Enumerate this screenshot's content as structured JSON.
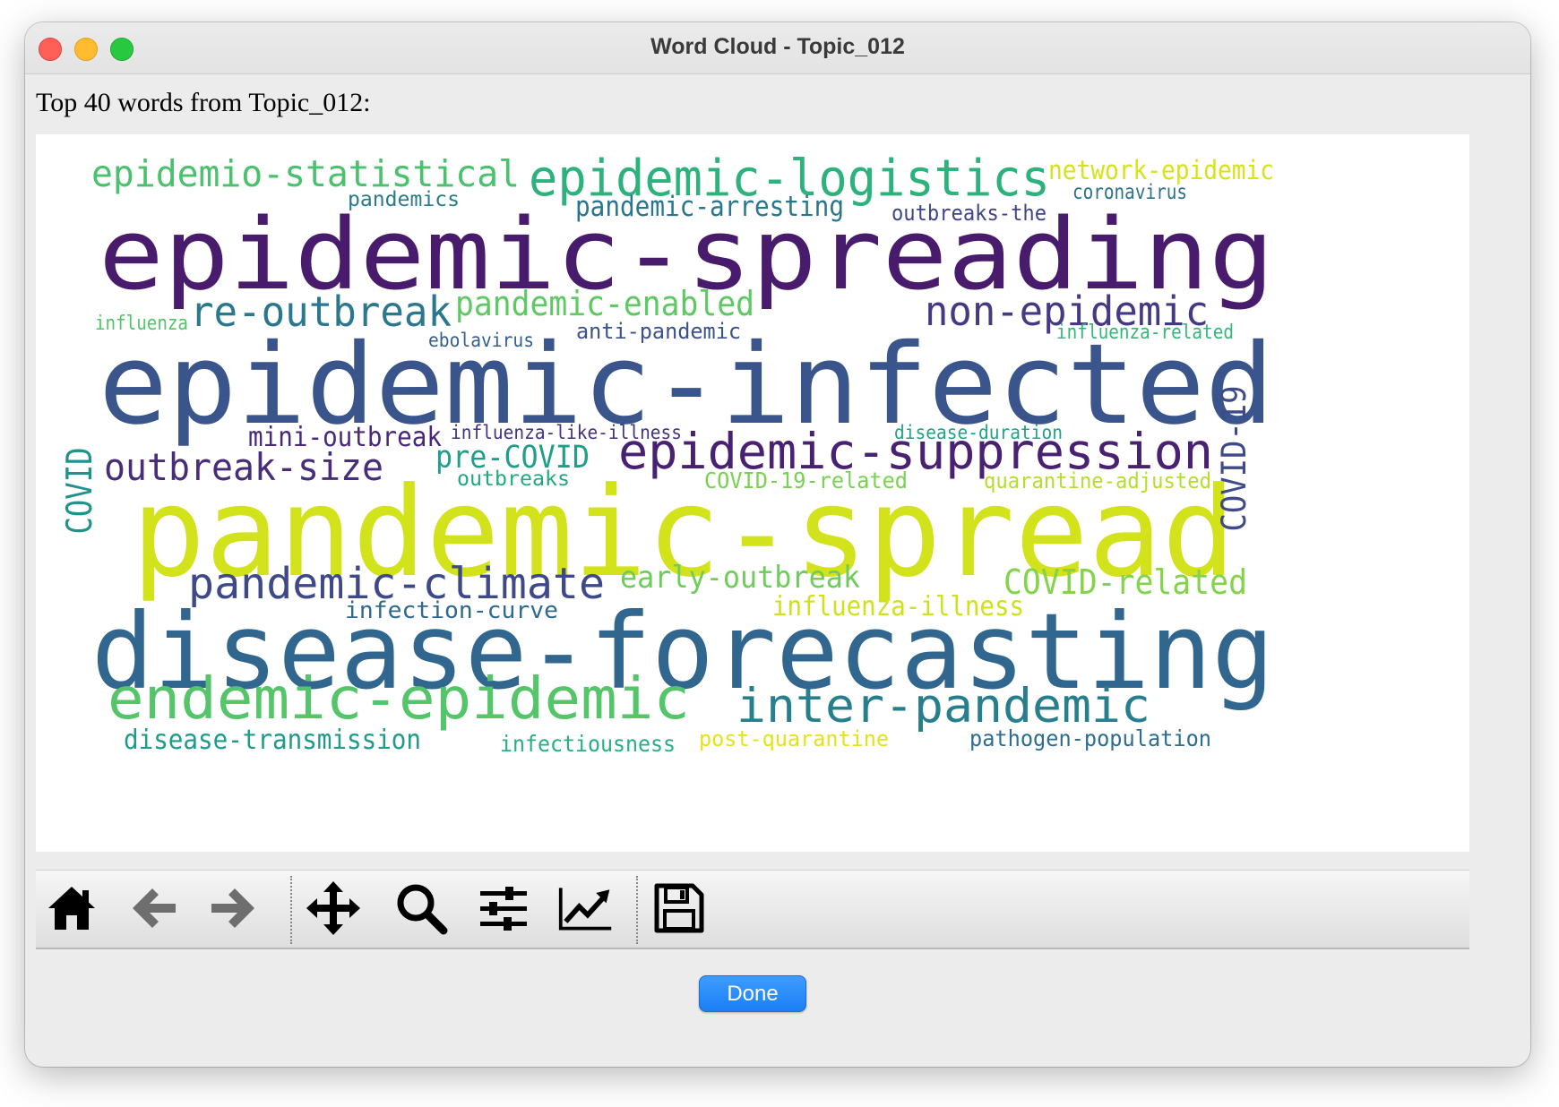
{
  "window": {
    "title": "Word Cloud - Topic_012"
  },
  "heading": "Top 40 words from Topic_012:",
  "chart_data": {
    "type": "wordcloud",
    "colormap": "viridis",
    "words": [
      {
        "text": "epidemic-spreading",
        "color": "#481b6d"
      },
      {
        "text": "epidemic-infected",
        "color": "#3a548c"
      },
      {
        "text": "pandemic-spread",
        "color": "#d2e21b"
      },
      {
        "text": "disease-forecasting",
        "color": "#31668e"
      },
      {
        "text": "epidemic-logistics",
        "color": "#2db27d"
      },
      {
        "text": "epidemio-statistical",
        "color": "#4ac16d"
      },
      {
        "text": "network-epidemic",
        "color": "#d8e219"
      },
      {
        "text": "coronavirus",
        "color": "#2c718e"
      },
      {
        "text": "pandemics",
        "color": "#287c8e"
      },
      {
        "text": "pandemic-arresting",
        "color": "#2a768e"
      },
      {
        "text": "outbreaks-the",
        "color": "#414487"
      },
      {
        "text": "re-outbreak",
        "color": "#2a788e"
      },
      {
        "text": "pandemic-enabled",
        "color": "#5ec962"
      },
      {
        "text": "non-epidemic",
        "color": "#443983"
      },
      {
        "text": "influenza",
        "color": "#52c569"
      },
      {
        "text": "ebolavirus",
        "color": "#355f8d"
      },
      {
        "text": "anti-pandemic",
        "color": "#3b528b"
      },
      {
        "text": "influenza-related",
        "color": "#35b779"
      },
      {
        "text": "mini-outbreak",
        "color": "#482878"
      },
      {
        "text": "influenza-like-illness",
        "color": "#46327e"
      },
      {
        "text": "disease-duration",
        "color": "#20a486"
      },
      {
        "text": "outbreak-size",
        "color": "#472d7b"
      },
      {
        "text": "pre-COVID",
        "color": "#1f9e89"
      },
      {
        "text": "epidemic-suppression",
        "color": "#482173"
      },
      {
        "text": "outbreaks",
        "color": "#22a884"
      },
      {
        "text": "COVID-19-related",
        "color": "#7ad151"
      },
      {
        "text": "quarantine-adjusted",
        "color": "#b5de2b"
      },
      {
        "text": "COVID",
        "color": "#21918c"
      },
      {
        "text": "COVID-19",
        "color": "#3e4a89"
      },
      {
        "text": "pandemic-climate",
        "color": "#3e4989"
      },
      {
        "text": "early-outbreak",
        "color": "#6ccd5a"
      },
      {
        "text": "COVID-related",
        "color": "#84d44b"
      },
      {
        "text": "infection-curve",
        "color": "#30698e"
      },
      {
        "text": "influenza-illness",
        "color": "#d0e11c"
      },
      {
        "text": "endemic-epidemic",
        "color": "#54c568"
      },
      {
        "text": "inter-pandemic",
        "color": "#277f8e"
      },
      {
        "text": "disease-transmission",
        "color": "#1e9b8a"
      },
      {
        "text": "infectiousness",
        "color": "#29af7f"
      },
      {
        "text": "post-quarantine",
        "color": "#e2e418"
      },
      {
        "text": "pathogen-population",
        "color": "#2e6d8e"
      }
    ]
  },
  "toolbar": {
    "buttons": [
      {
        "name": "home-icon"
      },
      {
        "name": "back-arrow-icon"
      },
      {
        "name": "forward-arrow-icon"
      },
      {
        "name": "pan-move-icon"
      },
      {
        "name": "zoom-magnifier-icon"
      },
      {
        "name": "configure-subplots-icon"
      },
      {
        "name": "edit-axis-icon"
      },
      {
        "name": "save-floppy-icon"
      }
    ]
  },
  "done_label": "Done"
}
